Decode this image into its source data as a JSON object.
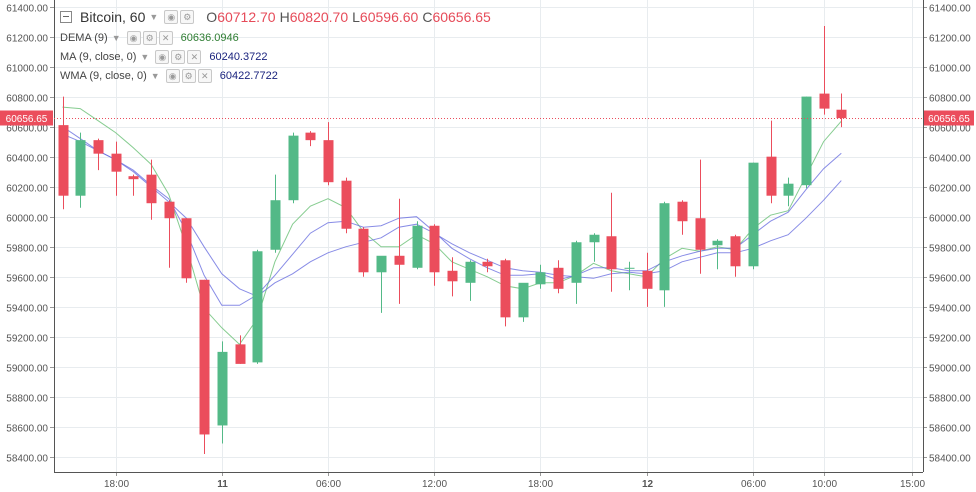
{
  "symbol": "Bitcoin, 60",
  "ohlc": [
    {
      "key": "O",
      "value": "60712.70"
    },
    {
      "key": "H",
      "value": "60820.70"
    },
    {
      "key": "L",
      "value": "60596.60"
    },
    {
      "key": "C",
      "value": "60656.65"
    }
  ],
  "indicators": [
    {
      "name": "DEMA (9)",
      "value": "60636.0946",
      "color": "#2e7d32"
    },
    {
      "name": "MA (9, close, 0)",
      "value": "60240.3722",
      "color": "#1a237e"
    },
    {
      "name": "WMA (9, close, 0)",
      "value": "60422.7722",
      "color": "#1a237e"
    }
  ],
  "price_tag": "60656.65",
  "colors": {
    "up": "#53b987",
    "down": "#eb4d5c",
    "dema": "#7fc98a",
    "ma": "#6a6fe0",
    "wma": "#6a6fe0",
    "grid": "#e8ecef",
    "price_line": "#eb4d5c"
  },
  "chart_data": {
    "type": "candlestick",
    "ylim": [
      58300,
      61430
    ],
    "y_ticks": [
      58400,
      58600,
      58800,
      59000,
      59200,
      59400,
      59600,
      59800,
      60000,
      60200,
      60400,
      60600,
      60800,
      61000,
      61200,
      61400
    ],
    "y_tick_labels": [
      "58400.00",
      "58600.00",
      "58800.00",
      "59000.00",
      "59200.00",
      "59400.00",
      "59600.00",
      "59800.00",
      "60000.00",
      "60200.00",
      "60400.00",
      "60600.00",
      "60800.00",
      "61000.00",
      "61200.00",
      "61400.00"
    ],
    "x_ticks": [
      {
        "index": 3,
        "label": "18:00"
      },
      {
        "index": 9,
        "label": "11"
      },
      {
        "index": 15,
        "label": "06:00"
      },
      {
        "index": 21,
        "label": "12:00"
      },
      {
        "index": 27,
        "label": "18:00"
      },
      {
        "index": 33,
        "label": "12"
      },
      {
        "index": 39,
        "label": "06:00"
      },
      {
        "index": 43,
        "label": "10:00"
      },
      {
        "index": 48,
        "label": "15:00"
      }
    ],
    "candles": [
      {
        "o": 60610,
        "h": 60800,
        "l": 60050,
        "c": 60140
      },
      {
        "o": 60140,
        "h": 60560,
        "l": 60060,
        "c": 60510
      },
      {
        "o": 60510,
        "h": 60520,
        "l": 60310,
        "c": 60420
      },
      {
        "o": 60420,
        "h": 60500,
        "l": 60140,
        "c": 60300
      },
      {
        "o": 60270,
        "h": 60280,
        "l": 60140,
        "c": 60250
      },
      {
        "o": 60280,
        "h": 60380,
        "l": 59980,
        "c": 60090
      },
      {
        "o": 60100,
        "h": 60110,
        "l": 59660,
        "c": 59990
      },
      {
        "o": 59990,
        "h": 59990,
        "l": 59560,
        "c": 59590
      },
      {
        "o": 59580,
        "h": 59580,
        "l": 58420,
        "c": 58550
      },
      {
        "o": 58610,
        "h": 59170,
        "l": 58490,
        "c": 59100
      },
      {
        "o": 59150,
        "h": 59210,
        "l": 59020,
        "c": 59020
      },
      {
        "o": 59030,
        "h": 59780,
        "l": 59020,
        "c": 59770
      },
      {
        "o": 59780,
        "h": 60280,
        "l": 59760,
        "c": 60110
      },
      {
        "o": 60110,
        "h": 60560,
        "l": 60090,
        "c": 60540
      },
      {
        "o": 60560,
        "h": 60570,
        "l": 60470,
        "c": 60510
      },
      {
        "o": 60510,
        "h": 60630,
        "l": 60210,
        "c": 60230
      },
      {
        "o": 60240,
        "h": 60260,
        "l": 59890,
        "c": 59920
      },
      {
        "o": 59920,
        "h": 59930,
        "l": 59600,
        "c": 59630
      },
      {
        "o": 59630,
        "h": 59710,
        "l": 59360,
        "c": 59740
      },
      {
        "o": 59740,
        "h": 60120,
        "l": 59420,
        "c": 59680
      },
      {
        "o": 59660,
        "h": 59970,
        "l": 59650,
        "c": 59940
      },
      {
        "o": 59940,
        "h": 59950,
        "l": 59540,
        "c": 59630
      },
      {
        "o": 59640,
        "h": 59730,
        "l": 59470,
        "c": 59570
      },
      {
        "o": 59560,
        "h": 59710,
        "l": 59440,
        "c": 59700
      },
      {
        "o": 59700,
        "h": 59720,
        "l": 59630,
        "c": 59670
      },
      {
        "o": 59710,
        "h": 59720,
        "l": 59270,
        "c": 59330
      },
      {
        "o": 59330,
        "h": 59550,
        "l": 59300,
        "c": 59560
      },
      {
        "o": 59550,
        "h": 59680,
        "l": 59520,
        "c": 59630
      },
      {
        "o": 59660,
        "h": 59710,
        "l": 59490,
        "c": 59520
      },
      {
        "o": 59560,
        "h": 59840,
        "l": 59420,
        "c": 59830
      },
      {
        "o": 59830,
        "h": 59890,
        "l": 59700,
        "c": 59880
      },
      {
        "o": 59870,
        "h": 60160,
        "l": 59500,
        "c": 59650
      },
      {
        "o": 59660,
        "h": 59700,
        "l": 59510,
        "c": 59660
      },
      {
        "o": 59640,
        "h": 59760,
        "l": 59400,
        "c": 59520
      },
      {
        "o": 59510,
        "h": 60100,
        "l": 59400,
        "c": 60090
      },
      {
        "o": 60100,
        "h": 60110,
        "l": 59880,
        "c": 59970
      },
      {
        "o": 59990,
        "h": 60380,
        "l": 59620,
        "c": 59780
      },
      {
        "o": 59810,
        "h": 59850,
        "l": 59650,
        "c": 59840
      },
      {
        "o": 59870,
        "h": 59880,
        "l": 59600,
        "c": 59670
      },
      {
        "o": 59670,
        "h": 60360,
        "l": 59650,
        "c": 60360
      },
      {
        "o": 60400,
        "h": 60640,
        "l": 60090,
        "c": 60140
      },
      {
        "o": 60140,
        "h": 60260,
        "l": 60070,
        "c": 60220
      },
      {
        "o": 60210,
        "h": 60800,
        "l": 60190,
        "c": 60800
      },
      {
        "o": 60820,
        "h": 61270,
        "l": 60680,
        "c": 60720
      },
      {
        "o": 60712.7,
        "h": 60820.7,
        "l": 60596.6,
        "c": 60656.65
      }
    ],
    "series": [
      {
        "name": "DEMA (9)",
        "values": [
          60730,
          60720,
          60640,
          60560,
          60460,
          60350,
          60150,
          59800,
          59390,
          59260,
          59150,
          59320,
          59700,
          59950,
          60070,
          60120,
          60060,
          59900,
          59800,
          59800,
          59880,
          59820,
          59700,
          59650,
          59600,
          59540,
          59520,
          59560,
          59560,
          59610,
          59690,
          59640,
          59620,
          59600,
          59720,
          59790,
          59770,
          59800,
          59780,
          59920,
          60010,
          60040,
          60270,
          60500,
          60636.09
        ]
      },
      {
        "name": "MA (9, close, 0)",
        "values": [
          60550,
          60500,
          60440,
          60380,
          60300,
          60200,
          60100,
          59990,
          59800,
          59620,
          59520,
          59470,
          59560,
          59620,
          59700,
          59760,
          59800,
          59830,
          59860,
          59930,
          59950,
          59890,
          59820,
          59760,
          59710,
          59660,
          59640,
          59630,
          59610,
          59600,
          59590,
          59620,
          59630,
          59620,
          59640,
          59700,
          59730,
          59760,
          59760,
          59790,
          59840,
          59880,
          59990,
          60110,
          60240.37
        ]
      },
      {
        "name": "WMA (9, close, 0)",
        "values": [
          60600,
          60520,
          60440,
          60380,
          60310,
          60210,
          60120,
          59900,
          59610,
          59410,
          59410,
          59480,
          59610,
          59750,
          59890,
          59960,
          59970,
          59930,
          59940,
          59990,
          60000,
          59900,
          59790,
          59720,
          59660,
          59610,
          59610,
          59620,
          59580,
          59610,
          59660,
          59660,
          59640,
          59640,
          59700,
          59740,
          59770,
          59790,
          59790,
          59880,
          59970,
          60030,
          60180,
          60320,
          60422.77
        ]
      }
    ]
  }
}
